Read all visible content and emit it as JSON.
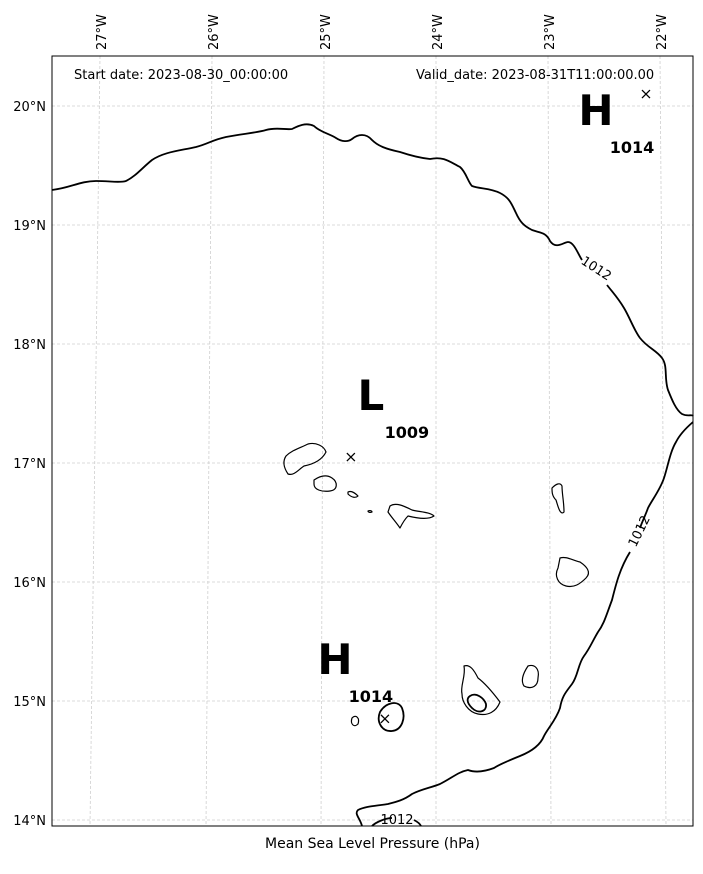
{
  "header": {
    "start_date": "Start date: 2023-08-30_00:00:00",
    "valid_date": "Valid_date: 2023-08-31T11:00:00.00"
  },
  "caption": "Mean Sea Level Pressure (hPa)",
  "axes": {
    "lon_labels": [
      "27°W",
      "26°W",
      "25°W",
      "24°W",
      "23°W",
      "22°W"
    ],
    "lat_labels": [
      "20°N",
      "19°N",
      "18°N",
      "17°N",
      "16°N",
      "15°N",
      "14°N"
    ]
  },
  "pressure_systems": [
    {
      "type": "H",
      "value": "1014",
      "lon": -22.15,
      "lat": 20.1
    },
    {
      "type": "L",
      "value": "1009",
      "lon": -24.75,
      "lat": 17.05
    },
    {
      "type": "H",
      "value": "1014",
      "lon": -24.45,
      "lat": 14.85
    }
  ],
  "isobar_labels": [
    "1012",
    "1012",
    "1012"
  ],
  "colors": {
    "isobar": "#000000",
    "grid": "#cfcfcf",
    "background": "#ffffff"
  }
}
